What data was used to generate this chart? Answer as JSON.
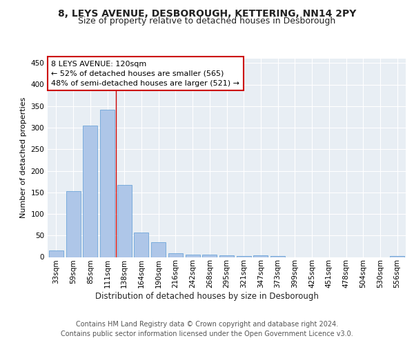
{
  "title": "8, LEYS AVENUE, DESBOROUGH, KETTERING, NN14 2PY",
  "subtitle": "Size of property relative to detached houses in Desborough",
  "xlabel": "Distribution of detached houses by size in Desborough",
  "ylabel": "Number of detached properties",
  "categories": [
    "33sqm",
    "59sqm",
    "85sqm",
    "111sqm",
    "138sqm",
    "164sqm",
    "190sqm",
    "216sqm",
    "242sqm",
    "268sqm",
    "295sqm",
    "321sqm",
    "347sqm",
    "373sqm",
    "399sqm",
    "425sqm",
    "451sqm",
    "478sqm",
    "504sqm",
    "530sqm",
    "556sqm"
  ],
  "values": [
    15,
    153,
    305,
    342,
    167,
    57,
    35,
    9,
    5,
    6,
    4,
    3,
    4,
    3,
    0,
    0,
    0,
    0,
    0,
    0,
    3
  ],
  "bar_color": "#aec6e8",
  "bar_edge_color": "#5b9bd5",
  "background_color": "#e8eef4",
  "grid_color": "#ffffff",
  "annotation_text": "8 LEYS AVENUE: 120sqm\n← 52% of detached houses are smaller (565)\n48% of semi-detached houses are larger (521) →",
  "annotation_box_color": "#ffffff",
  "annotation_box_edge_color": "#cc0000",
  "property_line_color": "#cc0000",
  "property_line_x": 3.5,
  "ylim": [
    0,
    460
  ],
  "yticks": [
    0,
    50,
    100,
    150,
    200,
    250,
    300,
    350,
    400,
    450
  ],
  "footer_text": "Contains HM Land Registry data © Crown copyright and database right 2024.\nContains public sector information licensed under the Open Government Licence v3.0.",
  "title_fontsize": 10,
  "subtitle_fontsize": 9,
  "xlabel_fontsize": 8.5,
  "ylabel_fontsize": 8,
  "tick_fontsize": 7.5,
  "annotation_fontsize": 8,
  "footer_fontsize": 7
}
